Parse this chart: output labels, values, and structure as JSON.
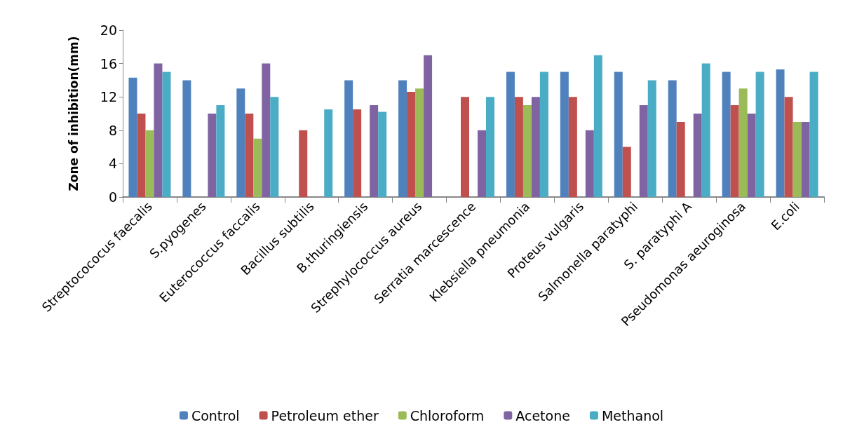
{
  "chart_data": {
    "type": "bar",
    "ylabel": "Zone of inhibition(mm)",
    "categories": [
      "Streptocococus faecalis",
      "S.pyogenes",
      "Euterococcus faccalis",
      "Bacillus subtilis",
      "B.thuringiensis",
      "Strephylococcus aureus",
      "Serratia marcescence",
      "Klebsiella pneumonia",
      "Proteus vulgaris",
      "Salmonella paratyphi",
      "S. paratyphi A",
      "Pseudomonas aeuroginosa",
      "E.coli"
    ],
    "series": [
      {
        "name": "Control",
        "color": "#4f81bd",
        "values": [
          14.3,
          14,
          13,
          null,
          14,
          14,
          null,
          15,
          15,
          15,
          14,
          15,
          15.3
        ]
      },
      {
        "name": "Petroleum ether",
        "color": "#c0504d",
        "values": [
          10,
          null,
          10,
          8,
          10.5,
          12.6,
          12,
          12,
          12,
          6,
          9,
          11,
          12
        ]
      },
      {
        "name": "Chloroform",
        "color": "#9bbb59",
        "values": [
          8,
          null,
          7,
          null,
          null,
          13,
          null,
          11,
          null,
          null,
          null,
          13,
          9
        ]
      },
      {
        "name": "Acetone",
        "color": "#8064a2",
        "values": [
          16,
          10,
          16,
          null,
          11,
          17,
          8,
          12,
          8,
          11,
          10,
          10,
          9
        ]
      },
      {
        "name": "Methanol",
        "color": "#4bacc6",
        "values": [
          15,
          11,
          12,
          10.5,
          10.2,
          null,
          12,
          15,
          17,
          14,
          16,
          15,
          15
        ]
      }
    ],
    "ylim": [
      0,
      20
    ],
    "yticks": [
      0,
      4,
      8,
      12,
      16,
      20
    ],
    "grid": false,
    "legend": "bottom"
  }
}
